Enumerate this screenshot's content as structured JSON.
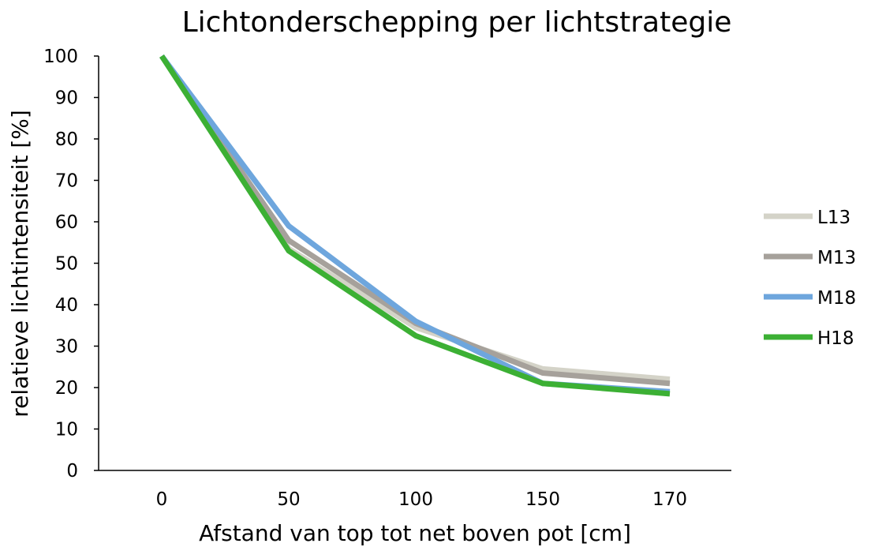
{
  "chart_data": {
    "type": "line",
    "title": "Lichtonderschepping per lichtstrategie",
    "xlabel": "Afstand van top tot net boven pot [cm]",
    "ylabel": "relatieve lichtintensiteit [%]",
    "categories": [
      "0",
      "50",
      "100",
      "150",
      "170"
    ],
    "ylim": [
      0,
      100
    ],
    "yticks": [
      0,
      10,
      20,
      30,
      40,
      50,
      60,
      70,
      80,
      90,
      100
    ],
    "grid": false,
    "legend_position": "right",
    "series": [
      {
        "name": "L13",
        "color": "#d4d3c8",
        "values": [
          100,
          53.5,
          34.5,
          24.5,
          22
        ]
      },
      {
        "name": "M13",
        "color": "#a6a19b",
        "values": [
          100,
          55.5,
          35.5,
          23.5,
          21
        ]
      },
      {
        "name": "M18",
        "color": "#6ea6dd",
        "values": [
          100,
          59,
          36,
          21,
          19
        ]
      },
      {
        "name": "H18",
        "color": "#3cb034",
        "values": [
          100,
          53,
          32.5,
          21,
          18.5
        ]
      }
    ]
  }
}
